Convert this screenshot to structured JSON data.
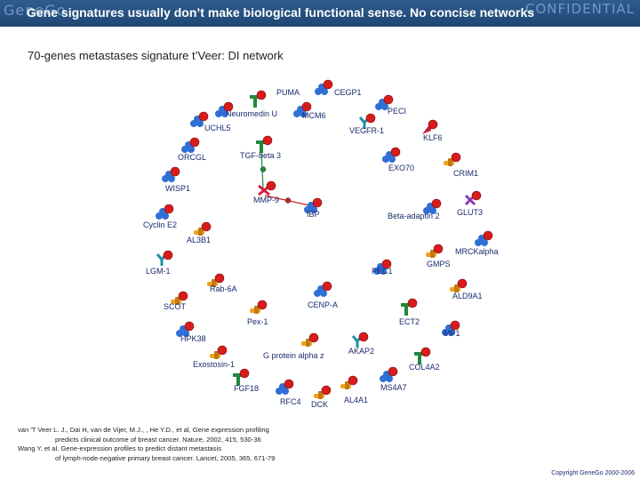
{
  "header": {
    "logo": "GeneGo",
    "title": "Gene signatures usually don’t make biological functional sense. No concise networks",
    "confidential": "CONFIDENTIAL"
  },
  "subtitle": "70-genes metastases signature t’Veer: DI network",
  "colors": {
    "header_bg": "#1f4773",
    "red_dot": "#d81c1c",
    "blue_icon": "#2f6fd6",
    "green_icon": "#1f8a3a",
    "orange_icon": "#f2a21a",
    "purple_icon": "#8a3bb0",
    "teal_icon": "#1f8fa5",
    "edge_red": "#cc2222"
  },
  "network": {
    "nodes": [
      {
        "label": "PUMA",
        "icon": "green-t-shape"
      },
      {
        "label": "CEGP1",
        "icon": "blue-cluster"
      },
      {
        "label": "Neuromedin U",
        "icon": "blue-cluster"
      },
      {
        "label": "MCM6",
        "icon": "blue-cluster"
      },
      {
        "label": "PECI",
        "icon": "blue-cluster"
      },
      {
        "label": "UCHL5",
        "icon": "blue-cluster"
      },
      {
        "label": "VEGFR-1",
        "icon": "teal-y-shape"
      },
      {
        "label": "KLF6",
        "icon": "red-arrow"
      },
      {
        "label": "ORCGL",
        "icon": "blue-cluster"
      },
      {
        "label": "TGF-beta 3",
        "icon": "green-t-shape"
      },
      {
        "label": "EXO70",
        "icon": "blue-cluster"
      },
      {
        "label": "CRIM1",
        "icon": "orange-bar"
      },
      {
        "label": "WISP1",
        "icon": "blue-cluster"
      },
      {
        "label": "MMP-9",
        "icon": "red-scissors"
      },
      {
        "label": "IBP",
        "icon": "blue-cluster"
      },
      {
        "label": "Beta-adaptin 2",
        "icon": "blue-cluster"
      },
      {
        "label": "GLUT3",
        "icon": "purple-x"
      },
      {
        "label": "Cyclin E2",
        "icon": "blue-cluster"
      },
      {
        "label": "AL3B1",
        "icon": "orange-bar"
      },
      {
        "label": "MRCKalpha",
        "icon": "blue-cluster"
      },
      {
        "label": "LGM-1",
        "icon": "teal-y-shape"
      },
      {
        "label": "GMPS",
        "icon": "orange-bar"
      },
      {
        "label": "PEC1",
        "icon": "blue-cluster"
      },
      {
        "label": "Rab-6A",
        "icon": "orange-bar"
      },
      {
        "label": "ALD9A1",
        "icon": "orange-bar"
      },
      {
        "label": "SCOT",
        "icon": "orange-bar"
      },
      {
        "label": "CENP-A",
        "icon": "blue-cluster"
      },
      {
        "label": "Pex-1",
        "icon": "orange-bar"
      },
      {
        "label": "ECT2",
        "icon": "green-t-shape"
      },
      {
        "label": "MP1",
        "icon": "blue-cluster"
      },
      {
        "label": "HPK38",
        "icon": "blue-cluster"
      },
      {
        "label": "G protein alpha z",
        "icon": "orange-bar"
      },
      {
        "label": "AKAP2",
        "icon": "teal-y-shape"
      },
      {
        "label": "Exostosin-1",
        "icon": "orange-bar"
      },
      {
        "label": "COL4A2",
        "icon": "green-t-shape"
      },
      {
        "label": "FGF18",
        "icon": "green-t-shape"
      },
      {
        "label": "MS4A7",
        "icon": "blue-cluster"
      },
      {
        "label": "RFC4",
        "icon": "blue-cluster"
      },
      {
        "label": "DCK",
        "icon": "orange-bar"
      },
      {
        "label": "AL4A1",
        "icon": "orange-bar"
      }
    ],
    "edges": [
      {
        "from": "TGF-beta 3",
        "to": "MMP-9",
        "color": "green"
      },
      {
        "from": "MMP-9",
        "to": "IBP",
        "color": "red"
      }
    ]
  },
  "references": [
    "van 'T Veer L. J., Dai H, van de Vijer, M.J., , He Y.D., et al, Gene expression profiling",
    "predicts clinical outcome of breast cancer. Nature, 2002, 415, 530-36",
    "Wang Y. et al. Gene-expression profiles to predict distant metastasis",
    "of lymph-node-negative primary breast cancer. Lancet, 2005, 365, 671-79"
  ],
  "copyright": "Copyright GeneGo 2000-2006"
}
